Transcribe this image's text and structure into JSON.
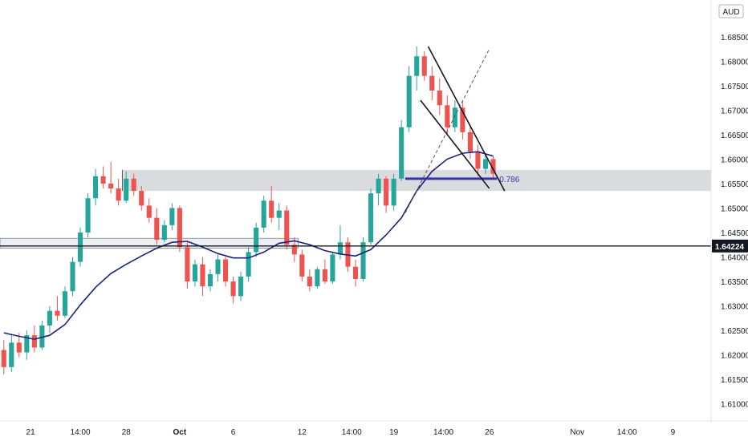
{
  "header": {
    "currency_label": "AUD"
  },
  "price_axis": {
    "ticks": [
      "1.68500",
      "1.68000",
      "1.67500",
      "1.67000",
      "1.66500",
      "1.66000",
      "1.65500",
      "1.65000",
      "1.64500",
      "1.64000",
      "1.63500",
      "1.63000",
      "1.62500",
      "1.62000",
      "1.61500",
      "1.61000"
    ],
    "tick_values": [
      1.685,
      1.68,
      1.675,
      1.67,
      1.665,
      1.66,
      1.655,
      1.65,
      1.645,
      1.64,
      1.635,
      1.63,
      1.625,
      1.62,
      1.615,
      1.61
    ],
    "current_price_label": "1.64224",
    "current_price": 1.64224
  },
  "time_axis": {
    "ticks": [
      "21",
      "14:00",
      "28",
      "Oct",
      "6",
      "12",
      "14:00",
      "19",
      "14:00",
      "26",
      "Nov",
      "14:00",
      "9"
    ],
    "tick_index": [
      3.5,
      10,
      16,
      23,
      30,
      39,
      45.5,
      51,
      57.5,
      63.5,
      75,
      81.5,
      87.5
    ],
    "bold": [
      false,
      false,
      false,
      true,
      false,
      false,
      false,
      false,
      false,
      false,
      false,
      false,
      false
    ]
  },
  "annotations": {
    "fib_label": "0.786"
  },
  "colors": {
    "up": "#26a69a",
    "down": "#ef5350",
    "ma": "#1a237e",
    "fib": "#3a34a8",
    "zone": "#dadbde",
    "trendline": "#131722",
    "axis_text": "#131722",
    "price_tag": "#131722"
  },
  "chart_data": {
    "type": "candlestick",
    "title": "",
    "y_range": [
      1.6065,
      1.6925
    ],
    "x_range": [
      -0.5,
      92.5
    ],
    "candles": [
      [
        1.621,
        1.623,
        1.616,
        1.6175
      ],
      [
        1.6175,
        1.624,
        1.6165,
        1.6225
      ],
      [
        1.6225,
        1.6245,
        1.6195,
        1.6205
      ],
      [
        1.6205,
        1.625,
        1.619,
        1.624
      ],
      [
        1.624,
        1.626,
        1.6205,
        1.6215
      ],
      [
        1.6215,
        1.627,
        1.621,
        1.626
      ],
      [
        1.626,
        1.63,
        1.6245,
        1.629
      ],
      [
        1.629,
        1.632,
        1.627,
        1.628
      ],
      [
        1.628,
        1.634,
        1.6275,
        1.633
      ],
      [
        1.633,
        1.64,
        1.632,
        1.639
      ],
      [
        1.639,
        1.646,
        1.638,
        1.645
      ],
      [
        1.645,
        1.653,
        1.644,
        1.652
      ],
      [
        1.652,
        1.658,
        1.6505,
        1.6565
      ],
      [
        1.6565,
        1.6585,
        1.654,
        1.655
      ],
      [
        1.655,
        1.6595,
        1.653,
        1.654
      ],
      [
        1.654,
        1.656,
        1.6505,
        1.6515
      ],
      [
        1.6515,
        1.6575,
        1.651,
        1.656
      ],
      [
        1.656,
        1.657,
        1.6525,
        1.6535
      ],
      [
        1.6535,
        1.6545,
        1.6495,
        1.6505
      ],
      [
        1.6505,
        1.652,
        1.647,
        1.648
      ],
      [
        1.648,
        1.65,
        1.6425,
        1.6435
      ],
      [
        1.6435,
        1.6475,
        1.643,
        1.6465
      ],
      [
        1.6465,
        1.651,
        1.6455,
        1.65
      ],
      [
        1.65,
        1.6505,
        1.641,
        1.642
      ],
      [
        1.642,
        1.643,
        1.6335,
        1.635
      ],
      [
        1.635,
        1.6395,
        1.634,
        1.6385
      ],
      [
        1.6385,
        1.64,
        1.632,
        1.634
      ],
      [
        1.634,
        1.6375,
        1.633,
        1.6365
      ],
      [
        1.6365,
        1.6405,
        1.635,
        1.6395
      ],
      [
        1.6395,
        1.64,
        1.634,
        1.635
      ],
      [
        1.635,
        1.636,
        1.6305,
        1.632
      ],
      [
        1.632,
        1.637,
        1.631,
        1.636
      ],
      [
        1.636,
        1.642,
        1.635,
        1.641
      ],
      [
        1.641,
        1.647,
        1.64,
        1.646
      ],
      [
        1.646,
        1.6525,
        1.645,
        1.6515
      ],
      [
        1.6515,
        1.6545,
        1.647,
        1.648
      ],
      [
        1.648,
        1.651,
        1.6455,
        1.6495
      ],
      [
        1.6495,
        1.6505,
        1.6415,
        1.6425
      ],
      [
        1.6425,
        1.644,
        1.639,
        1.6405
      ],
      [
        1.6405,
        1.6415,
        1.635,
        1.636
      ],
      [
        1.636,
        1.6375,
        1.633,
        1.634
      ],
      [
        1.634,
        1.638,
        1.6335,
        1.6375
      ],
      [
        1.6375,
        1.6395,
        1.6345,
        1.635
      ],
      [
        1.635,
        1.641,
        1.6345,
        1.6405
      ],
      [
        1.6405,
        1.6465,
        1.6395,
        1.643
      ],
      [
        1.643,
        1.644,
        1.637,
        1.638
      ],
      [
        1.638,
        1.6395,
        1.634,
        1.6355
      ],
      [
        1.6355,
        1.644,
        1.635,
        1.643
      ],
      [
        1.643,
        1.654,
        1.6425,
        1.653
      ],
      [
        1.653,
        1.657,
        1.6505,
        1.656
      ],
      [
        1.656,
        1.6565,
        1.649,
        1.6505
      ],
      [
        1.6505,
        1.657,
        1.6495,
        1.656
      ],
      [
        1.656,
        1.668,
        1.6555,
        1.6665
      ],
      [
        1.6665,
        1.679,
        1.6655,
        1.677
      ],
      [
        1.677,
        1.683,
        1.674,
        1.681
      ],
      [
        1.681,
        1.682,
        1.676,
        1.677
      ],
      [
        1.677,
        1.679,
        1.672,
        1.674
      ],
      [
        1.674,
        1.6765,
        1.669,
        1.671
      ],
      [
        1.671,
        1.673,
        1.665,
        1.6665
      ],
      [
        1.6665,
        1.672,
        1.6655,
        1.6705
      ],
      [
        1.6705,
        1.672,
        1.664,
        1.6655
      ],
      [
        1.6655,
        1.667,
        1.66,
        1.6615
      ],
      [
        1.6615,
        1.663,
        1.6565,
        1.658
      ],
      [
        1.658,
        1.661,
        1.657,
        1.66
      ],
      [
        1.66,
        1.6605,
        1.656,
        1.657
      ]
    ],
    "moving_average": [
      [
        0,
        1.6245
      ],
      [
        2,
        1.6238
      ],
      [
        4,
        1.6232
      ],
      [
        6,
        1.624
      ],
      [
        8,
        1.6262
      ],
      [
        10,
        1.6302
      ],
      [
        12,
        1.6338
      ],
      [
        14,
        1.6366
      ],
      [
        16,
        1.6385
      ],
      [
        18,
        1.6402
      ],
      [
        20,
        1.6418
      ],
      [
        22,
        1.643
      ],
      [
        24,
        1.6432
      ],
      [
        26,
        1.642
      ],
      [
        28,
        1.6407
      ],
      [
        30,
        1.6398
      ],
      [
        32,
        1.6398
      ],
      [
        34,
        1.641
      ],
      [
        36,
        1.6428
      ],
      [
        38,
        1.6433
      ],
      [
        40,
        1.6425
      ],
      [
        42,
        1.6413
      ],
      [
        44,
        1.6406
      ],
      [
        46,
        1.6402
      ],
      [
        48,
        1.6415
      ],
      [
        50,
        1.6445
      ],
      [
        52,
        1.648
      ],
      [
        54,
        1.6535
      ],
      [
        56,
        1.6575
      ],
      [
        58,
        1.66
      ],
      [
        60,
        1.6612
      ],
      [
        62,
        1.6615
      ],
      [
        64,
        1.6606
      ]
    ],
    "resistance_zone": {
      "x_start": 15.5,
      "x_end": 92.5,
      "y_low": 1.6535,
      "y_high": 1.6578
    },
    "support_box": {
      "x_start": -0.5,
      "x_end": 38.5,
      "y_low": 1.6418,
      "y_high": 1.6438
    },
    "price_line": 1.64224,
    "fib_level": {
      "value": 1.656,
      "x_start": 52.5,
      "x_end": 64.5
    },
    "channel_lines": [
      {
        "from": [
          55.5,
          1.683
        ],
        "to": [
          65.5,
          1.6535
        ]
      },
      {
        "from": [
          54.5,
          1.672
        ],
        "to": [
          63.5,
          1.654
        ]
      }
    ],
    "dashed_line": {
      "from": [
        52.5,
        1.649
      ],
      "to": [
        63.5,
        1.6825
      ]
    }
  }
}
